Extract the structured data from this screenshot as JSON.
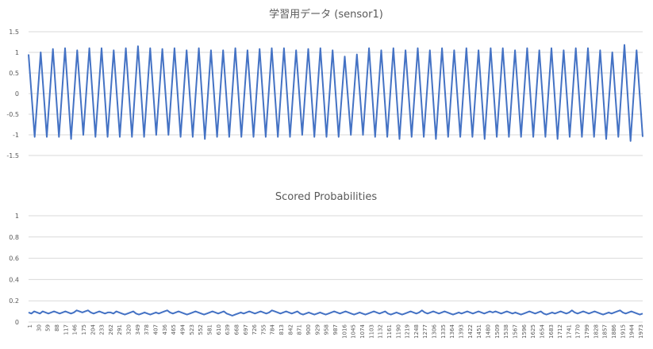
{
  "chart_data": [
    {
      "type": "line",
      "title": "学習用データ (sensor1)",
      "xlabel": "",
      "ylabel": "",
      "ylim": [
        -1.5,
        1.5
      ],
      "yticks": [
        "1.5",
        "1",
        "0.5",
        "0",
        "-0.5",
        "-1",
        "-1.5"
      ],
      "x_range": [
        1,
        1973
      ],
      "grid": true,
      "legend": "none",
      "color": "#4472c4",
      "series": [
        {
          "values": [
            0.95,
            -1.05,
            1.0,
            -1.05,
            1.08,
            -1.05,
            1.1,
            -1.1,
            1.05,
            -1.0,
            1.1,
            -1.05,
            1.1,
            -1.05,
            1.05,
            -1.05,
            1.1,
            -1.05,
            1.15,
            -1.05,
            1.1,
            -1.0,
            1.08,
            -1.0,
            1.1,
            -1.05,
            1.05,
            -1.05,
            1.1,
            -1.1,
            1.05,
            -1.05,
            1.05,
            -1.05,
            1.1,
            -1.05,
            1.05,
            -1.05,
            1.08,
            -1.05,
            1.1,
            -1.05,
            1.1,
            -1.05,
            1.05,
            -1.0,
            1.08,
            -1.05,
            1.1,
            -1.05,
            1.05,
            -1.05,
            0.9,
            -1.0,
            0.95,
            -1.0,
            1.1,
            -1.05,
            1.05,
            -1.05,
            1.1,
            -1.1,
            1.05,
            -1.05,
            1.1,
            -1.05,
            1.05,
            -1.1,
            1.1,
            -1.05,
            1.05,
            -1.05,
            1.1,
            -1.05,
            1.05,
            -1.1,
            1.1,
            -1.05,
            1.1,
            -1.05,
            1.05,
            -1.05,
            1.1,
            -1.05,
            1.05,
            -1.05,
            1.1,
            -1.1,
            1.05,
            -1.05,
            1.1,
            -1.05,
            1.1,
            -1.05,
            1.05,
            -1.1,
            1.0,
            -1.05,
            1.18,
            -1.15,
            1.05,
            -1.05
          ]
        }
      ]
    },
    {
      "type": "line",
      "title": "Scored Probabilities",
      "xlabel": "",
      "ylabel": "",
      "ylim": [
        0,
        1
      ],
      "yticks": [
        "1",
        "0.8",
        "0.6",
        "0.4",
        "0.2",
        "0"
      ],
      "xticks": [
        "1",
        "30",
        "59",
        "88",
        "117",
        "146",
        "175",
        "204",
        "233",
        "262",
        "291",
        "320",
        "349",
        "378",
        "407",
        "436",
        "465",
        "494",
        "523",
        "552",
        "581",
        "610",
        "639",
        "668",
        "697",
        "726",
        "755",
        "784",
        "813",
        "842",
        "871",
        "900",
        "929",
        "958",
        "987",
        "1016",
        "1045",
        "1074",
        "1103",
        "1132",
        "1161",
        "1190",
        "1219",
        "1248",
        "1277",
        "1306",
        "1335",
        "1364",
        "1393",
        "1422",
        "1451",
        "1480",
        "1509",
        "1538",
        "1567",
        "1596",
        "1625",
        "1654",
        "1683",
        "1712",
        "1741",
        "1770",
        "1799",
        "1828",
        "1857",
        "1886",
        "1915",
        "1944",
        "1973"
      ],
      "grid": true,
      "legend": "none",
      "color": "#4472c4",
      "series": [
        {
          "values": [
            0.09,
            0.08,
            0.1,
            0.09,
            0.08,
            0.1,
            0.09,
            0.08,
            0.09,
            0.1,
            0.09,
            0.08,
            0.09,
            0.1,
            0.09,
            0.08,
            0.09,
            0.11,
            0.1,
            0.09,
            0.1,
            0.11,
            0.09,
            0.08,
            0.09,
            0.1,
            0.09,
            0.08,
            0.09,
            0.09,
            0.08,
            0.1,
            0.09,
            0.08,
            0.07,
            0.08,
            0.09,
            0.1,
            0.08,
            0.07,
            0.08,
            0.09,
            0.08,
            0.07,
            0.08,
            0.09,
            0.08,
            0.09,
            0.1,
            0.11,
            0.09,
            0.08,
            0.09,
            0.1,
            0.09,
            0.08,
            0.07,
            0.08,
            0.09,
            0.1,
            0.09,
            0.08,
            0.07,
            0.08,
            0.09,
            0.1,
            0.09,
            0.08,
            0.09,
            0.1,
            0.08,
            0.07,
            0.06,
            0.07,
            0.08,
            0.09,
            0.08,
            0.09,
            0.1,
            0.09,
            0.08,
            0.09,
            0.1,
            0.09,
            0.08,
            0.09,
            0.11,
            0.1,
            0.09,
            0.08,
            0.09,
            0.1,
            0.09,
            0.08,
            0.09,
            0.1,
            0.08,
            0.07,
            0.08,
            0.09,
            0.08,
            0.07,
            0.08,
            0.09,
            0.08,
            0.07,
            0.08,
            0.09,
            0.1,
            0.09,
            0.08,
            0.09,
            0.1,
            0.09,
            0.08,
            0.07,
            0.08,
            0.09,
            0.08,
            0.07,
            0.08,
            0.09,
            0.1,
            0.09,
            0.08,
            0.09,
            0.1,
            0.08,
            0.07,
            0.08,
            0.09,
            0.08,
            0.07,
            0.08,
            0.09,
            0.1,
            0.09,
            0.08,
            0.09,
            0.11,
            0.09,
            0.08,
            0.09,
            0.1,
            0.09,
            0.08,
            0.09,
            0.1,
            0.09,
            0.08,
            0.07,
            0.08,
            0.09,
            0.08,
            0.09,
            0.1,
            0.09,
            0.08,
            0.09,
            0.1,
            0.09,
            0.08,
            0.09,
            0.1,
            0.09,
            0.1,
            0.09,
            0.08,
            0.09,
            0.1,
            0.09,
            0.08,
            0.09,
            0.08,
            0.07,
            0.08,
            0.09,
            0.1,
            0.09,
            0.08,
            0.09,
            0.1,
            0.08,
            0.07,
            0.08,
            0.09,
            0.08,
            0.09,
            0.1,
            0.09,
            0.08,
            0.09,
            0.11,
            0.09,
            0.08,
            0.09,
            0.1,
            0.09,
            0.08,
            0.09,
            0.1,
            0.09,
            0.08,
            0.07,
            0.08,
            0.09,
            0.08,
            0.09,
            0.1,
            0.11,
            0.09,
            0.08,
            0.09,
            0.1,
            0.09,
            0.08,
            0.07,
            0.08
          ]
        }
      ]
    }
  ]
}
